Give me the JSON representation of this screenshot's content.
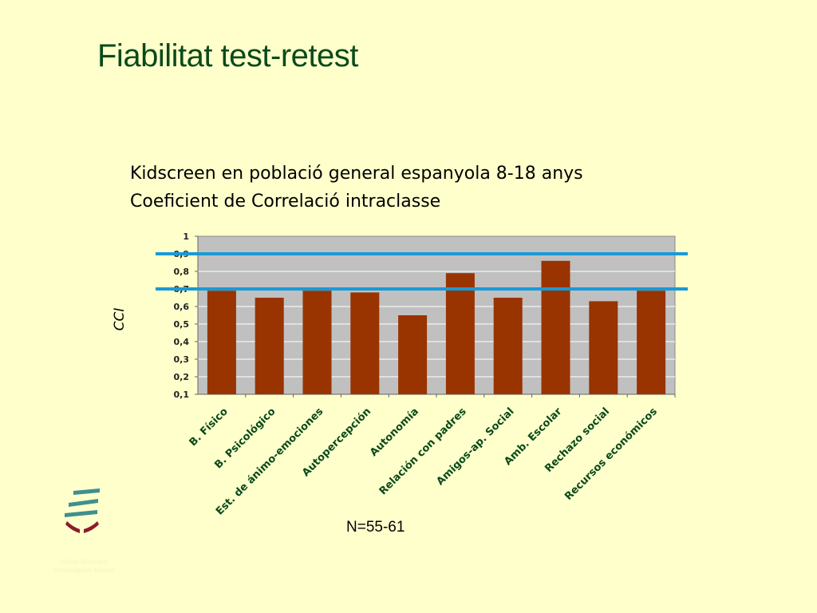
{
  "slide": {
    "title": "Fiabilitat test-retest",
    "subtitle_line1": "Kidscreen en població general espanyola 8-18 anys",
    "subtitle_line2": "Coeficient de Correlació intraclasse",
    "footnote": "N=55-61",
    "institution_line1": "Institut Municipal",
    "institution_line2": "d'Investigació Mèdica"
  },
  "colors": {
    "background": "#ffffcc",
    "title": "#0a4a1a",
    "plot_area": "#c0c0c0",
    "bar": "#993300",
    "reference_line": "#1a9ad6",
    "logo_teal": "#3f8f8f",
    "logo_maroon": "#8c1c2a"
  },
  "chart_data": {
    "type": "bar",
    "ylabel": "CCI",
    "ylim": [
      0.1,
      1
    ],
    "yticks": [
      "0,1",
      "0,2",
      "0,3",
      "0,4",
      "0,5",
      "0,6",
      "0,7",
      "0,8",
      "0,9",
      "1"
    ],
    "grid": true,
    "categories": [
      "B. Físico",
      "B. Psicológico",
      "Est. de ánimo-emociones",
      "Autopercepción",
      "Autonomía",
      "Relación con padres",
      "Amigos-ap. Social",
      "Amb. Escolar",
      "Rechazo social",
      "Recursos económicos"
    ],
    "values": [
      0.69,
      0.65,
      0.69,
      0.68,
      0.55,
      0.79,
      0.65,
      0.86,
      0.63,
      0.69
    ],
    "reference_lines": [
      0.9,
      0.7
    ]
  }
}
